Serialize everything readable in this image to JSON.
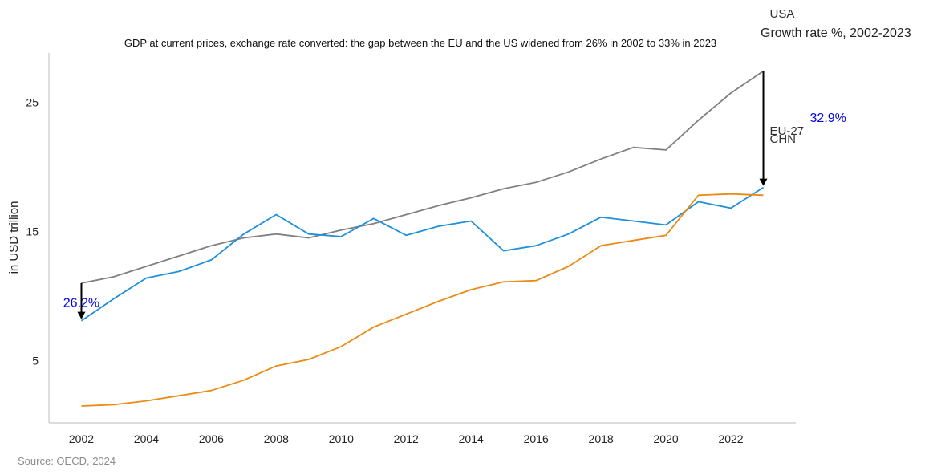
{
  "chart_data": {
    "type": "line",
    "title": "GDP at current prices, exchange rate converted: the gap between the EU and the US widened from 26% in 2002 to 33% in 2023",
    "subtitle": "Growth rate %, 2002-2023",
    "ylabel": "in USD trillion",
    "xlabel": "",
    "source": "Source: OECD, 2024",
    "xlim": [
      2001,
      2024
    ],
    "ylim": [
      0.2,
      28.8
    ],
    "yticks": [
      5,
      15,
      25
    ],
    "xticks": [
      2002,
      2004,
      2006,
      2008,
      2010,
      2012,
      2014,
      2016,
      2018,
      2020,
      2022
    ],
    "x": [
      2002,
      2003,
      2004,
      2005,
      2006,
      2007,
      2008,
      2009,
      2010,
      2011,
      2012,
      2013,
      2014,
      2015,
      2016,
      2017,
      2018,
      2019,
      2020,
      2021,
      2022,
      2023
    ],
    "series": [
      {
        "name": "USA",
        "color": "#808080",
        "values": [
          11.0,
          11.5,
          12.3,
          13.1,
          13.9,
          14.5,
          14.8,
          14.5,
          15.1,
          15.6,
          16.3,
          17.0,
          17.6,
          18.3,
          18.8,
          19.6,
          20.6,
          21.5,
          21.3,
          23.6,
          25.7,
          27.4
        ]
      },
      {
        "name": "EU-27",
        "color": "#1e8fdc",
        "values": [
          8.1,
          9.8,
          11.4,
          11.9,
          12.8,
          14.8,
          16.3,
          14.8,
          14.6,
          16.0,
          14.7,
          15.4,
          15.8,
          13.5,
          13.9,
          14.8,
          16.1,
          15.8,
          15.5,
          17.3,
          16.8,
          18.4
        ]
      },
      {
        "name": "CHN",
        "color": "#eb8a16",
        "values": [
          1.5,
          1.6,
          1.9,
          2.3,
          2.7,
          3.5,
          4.6,
          5.1,
          6.1,
          7.6,
          8.6,
          9.6,
          10.5,
          11.1,
          11.2,
          12.3,
          13.9,
          14.3,
          14.7,
          17.8,
          17.9,
          17.8
        ]
      }
    ],
    "annotations": [
      {
        "text": "26.2%",
        "x": 2002,
        "from": 11.0,
        "to": 8.1,
        "color": "#0000ee"
      },
      {
        "text": "32.9%",
        "x": 2023,
        "from": 27.4,
        "to": 18.4,
        "color": "#0000ee"
      }
    ],
    "legend_placement": "right",
    "grid": false
  }
}
